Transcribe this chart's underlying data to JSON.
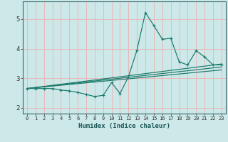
{
  "xlabel": "Humidex (Indice chaleur)",
  "bg_color": "#cce8e8",
  "grid_color": "#e8b8b8",
  "line_color": "#1a7a6a",
  "xlim": [
    -0.5,
    23.5
  ],
  "ylim": [
    1.8,
    5.6
  ],
  "xticks": [
    0,
    1,
    2,
    3,
    4,
    5,
    6,
    7,
    8,
    9,
    10,
    11,
    12,
    13,
    14,
    15,
    16,
    17,
    18,
    19,
    20,
    21,
    22,
    23
  ],
  "yticks": [
    2,
    3,
    4,
    5
  ],
  "series1_x": [
    0,
    1,
    2,
    3,
    4,
    5,
    6,
    7,
    8,
    9,
    10,
    11,
    12,
    13,
    14,
    15,
    16,
    17,
    18,
    19,
    20,
    21,
    22,
    23
  ],
  "series1_y": [
    2.65,
    2.65,
    2.65,
    2.65,
    2.6,
    2.57,
    2.52,
    2.45,
    2.38,
    2.42,
    2.85,
    2.48,
    3.05,
    3.95,
    5.22,
    4.78,
    4.32,
    4.35,
    3.55,
    3.45,
    3.93,
    3.72,
    3.45,
    3.45
  ],
  "line1_x": [
    0,
    23
  ],
  "line1_y": [
    2.65,
    3.48
  ],
  "line2_x": [
    0,
    23
  ],
  "line2_y": [
    2.65,
    3.38
  ],
  "line3_x": [
    0,
    23
  ],
  "line3_y": [
    2.65,
    3.28
  ]
}
